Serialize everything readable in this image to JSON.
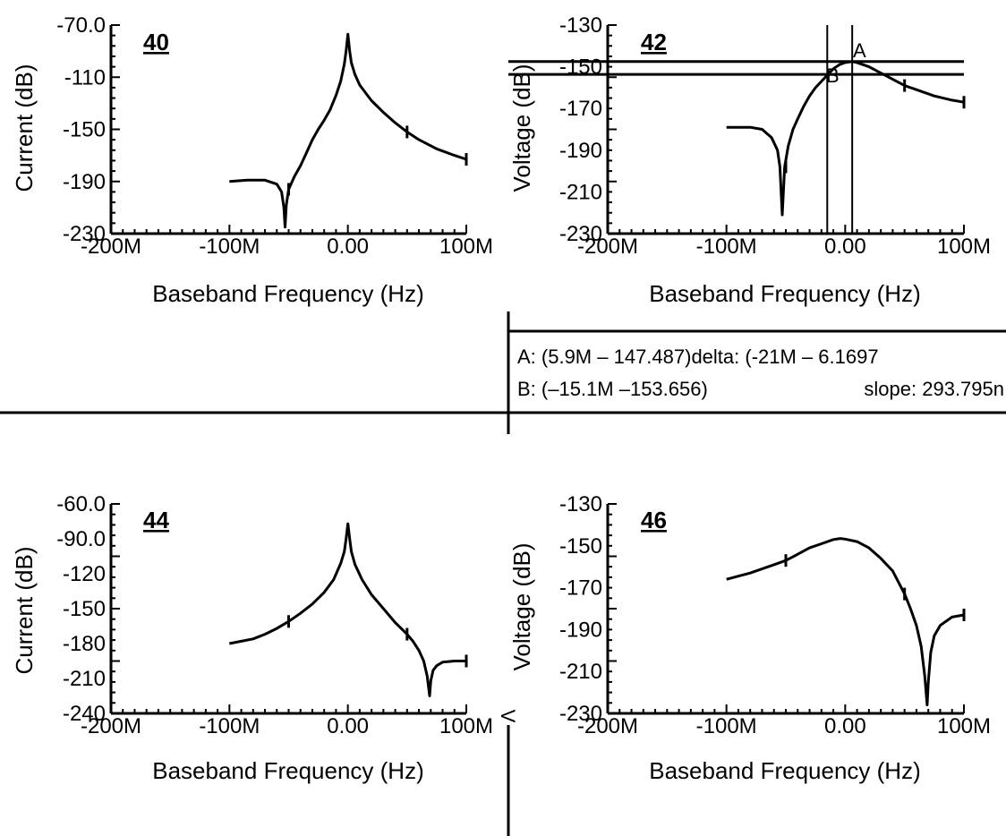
{
  "chart_data": [
    {
      "id": "40",
      "type": "line",
      "xlabel": "Baseband Frequency (Hz)",
      "ylabel": "Current (dB)",
      "xlim": [
        -200000000,
        100000000
      ],
      "ylim": [
        -230,
        -70
      ],
      "x_tick_labels": [
        "-200M",
        "-100M",
        "0.00",
        "100M"
      ],
      "y_tick_labels": [
        "-70.0",
        "-110",
        "-150",
        "-190",
        "-230"
      ],
      "series": [
        {
          "x": [
            -100000000,
            -85000000,
            -70000000,
            -60000000,
            -56000000,
            -54000000,
            -53000000,
            -52000000,
            -50000000,
            -45000000,
            -40000000,
            -35000000,
            -30000000,
            -25000000,
            -20000000,
            -15000000,
            -10000000,
            -6000000,
            -3000000,
            -1500000,
            0,
            1500000,
            3000000,
            6000000,
            10000000,
            20000000,
            30000000,
            40000000,
            50000000,
            60000000,
            75000000,
            90000000,
            100000000
          ],
          "y": [
            -190,
            -189,
            -189,
            -192,
            -198,
            -210,
            -225,
            -208,
            -196,
            -186,
            -178,
            -168,
            -158,
            -150,
            -143,
            -135,
            -124,
            -113,
            -100,
            -90,
            -77,
            -90,
            -99,
            -108,
            -116,
            -128,
            -137,
            -145,
            -152,
            -158,
            -165,
            -170,
            -173
          ]
        }
      ]
    },
    {
      "id": "42",
      "type": "line",
      "xlabel": "Baseband Frequency (Hz)",
      "ylabel": "Voltage (dB)",
      "xlim": [
        -200000000,
        100000000
      ],
      "ylim": [
        -230,
        -130
      ],
      "x_tick_labels": [
        "-200M",
        "-100M",
        "0.00",
        "100M"
      ],
      "y_tick_labels": [
        "-130",
        "-150",
        "-170",
        "-190",
        "-210",
        "-230"
      ],
      "series": [
        {
          "x": [
            -100000000,
            -80000000,
            -70000000,
            -62000000,
            -57000000,
            -55000000,
            -53000000,
            -51000000,
            -48000000,
            -44000000,
            -40000000,
            -35000000,
            -30000000,
            -25000000,
            -20000000,
            -15000000,
            -10000000,
            -5000000,
            0,
            5900000,
            10000000,
            20000000,
            30000000,
            40000000,
            50000000,
            60000000,
            75000000,
            90000000,
            100000000
          ],
          "y": [
            -179,
            -179,
            -180,
            -184,
            -190,
            -198,
            -221,
            -198,
            -188,
            -180,
            -175,
            -169,
            -164,
            -160,
            -157,
            -154,
            -151,
            -149,
            -148,
            -147.5,
            -148,
            -150,
            -153,
            -156,
            -159,
            -161,
            -164,
            -166,
            -167
          ]
        }
      ],
      "cursors": {
        "A": {
          "label": "A",
          "x": 5900000,
          "y": -147.487
        },
        "B": {
          "label": "B",
          "x": -15100000,
          "y": -153.656
        }
      }
    },
    {
      "id": "44",
      "type": "line",
      "xlabel": "Baseband Frequency (Hz)",
      "ylabel": "Current (dB)",
      "xlim": [
        -200000000,
        100000000
      ],
      "ylim": [
        -240,
        -60
      ],
      "x_tick_labels": [
        "-200M",
        "-100M",
        "0.00",
        "100M"
      ],
      "y_tick_labels": [
        "-60.0",
        "-90.0",
        "-120",
        "-150",
        "-180",
        "-210",
        "-240"
      ],
      "series": [
        {
          "x": [
            -100000000,
            -90000000,
            -80000000,
            -70000000,
            -60000000,
            -50000000,
            -40000000,
            -30000000,
            -20000000,
            -12000000,
            -6000000,
            -3000000,
            -1500000,
            0,
            1500000,
            3000000,
            6000000,
            12000000,
            20000000,
            30000000,
            40000000,
            50000000,
            55000000,
            60000000,
            64000000,
            67000000,
            69000000,
            70000000,
            72000000,
            75000000,
            80000000,
            90000000,
            100000000
          ],
          "y": [
            -180,
            -178,
            -176,
            -172,
            -167,
            -161,
            -154,
            -146,
            -136,
            -125,
            -111,
            -101,
            -90,
            -77,
            -90,
            -101,
            -112,
            -125,
            -138,
            -150,
            -162,
            -172,
            -178,
            -186,
            -195,
            -208,
            -225,
            -212,
            -203,
            -199,
            -196,
            -195,
            -195
          ]
        }
      ]
    },
    {
      "id": "46",
      "type": "line",
      "xlabel": "Baseband Frequency (Hz)",
      "ylabel": "Voltage (dB)",
      "xlim": [
        -200000000,
        100000000
      ],
      "ylim": [
        -230,
        -130
      ],
      "x_tick_labels": [
        "-200M",
        "-100M",
        "0.00",
        "100M"
      ],
      "y_tick_labels": [
        "-130",
        "-150",
        "-170",
        "-190",
        "-210",
        "-230"
      ],
      "series": [
        {
          "x": [
            -100000000,
            -80000000,
            -60000000,
            -50000000,
            -40000000,
            -30000000,
            -20000000,
            -10000000,
            -4000000,
            0,
            10000000,
            20000000,
            30000000,
            40000000,
            50000000,
            55000000,
            60000000,
            64000000,
            67000000,
            69000000,
            70000000,
            72000000,
            75000000,
            80000000,
            90000000,
            100000000
          ],
          "y": [
            -166,
            -163,
            -159,
            -157,
            -154,
            -151,
            -149,
            -147,
            -146.5,
            -146.8,
            -148,
            -151,
            -156,
            -162,
            -173,
            -180,
            -188,
            -198,
            -212,
            -226,
            -215,
            -201,
            -193,
            -188,
            -184,
            -183
          ]
        }
      ]
    }
  ],
  "readout": {
    "line1": "A: (5.9M – 147.487)delta: (-21M – 6.1697",
    "line2_left": "B: (–15.1M –153.656)",
    "line2_right": "slope: 293.795n"
  },
  "marker_glyph": "V"
}
